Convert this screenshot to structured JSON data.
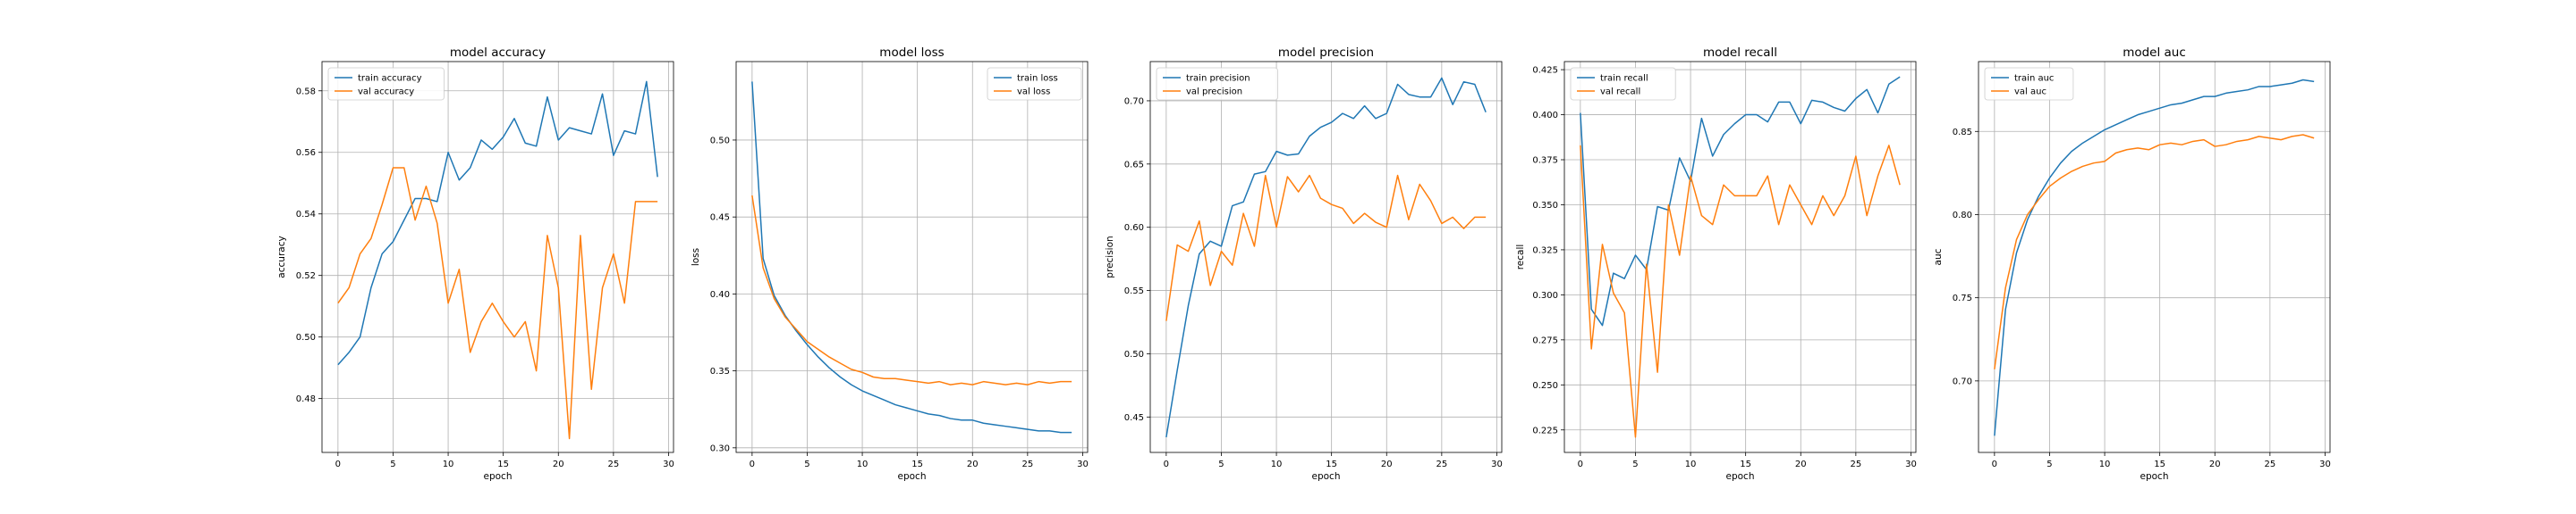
{
  "chart_data": [
    {
      "type": "line",
      "title": "model accuracy",
      "xlabel": "epoch",
      "ylabel": "accuracy",
      "xlim": [
        -1.45,
        30.45
      ],
      "ylim": [
        0.4625,
        0.5895
      ],
      "xticks": [
        0,
        5,
        10,
        15,
        20,
        25,
        30
      ],
      "yticks": [
        0.48,
        0.5,
        0.52,
        0.54,
        0.56,
        0.58
      ],
      "ytick_labels": [
        "0.48",
        "0.50",
        "0.52",
        "0.54",
        "0.56",
        "0.58"
      ],
      "grid": true,
      "legend": "top-left",
      "series": [
        {
          "name": "train accuracy",
          "color": "#1f77b4",
          "x": [
            0,
            1,
            2,
            3,
            4,
            5,
            6,
            7,
            8,
            9,
            10,
            11,
            12,
            13,
            14,
            15,
            16,
            17,
            18,
            19,
            20,
            21,
            22,
            23,
            24,
            25,
            26,
            27,
            28,
            29
          ],
          "values": [
            0.491,
            0.495,
            0.5,
            0.516,
            0.527,
            0.531,
            0.538,
            0.545,
            0.545,
            0.544,
            0.56,
            0.551,
            0.555,
            0.564,
            0.561,
            0.565,
            0.571,
            0.563,
            0.562,
            0.578,
            0.564,
            0.568,
            0.567,
            0.566,
            0.579,
            0.559,
            0.567,
            0.566,
            0.583,
            0.552
          ]
        },
        {
          "name": "val accuracy",
          "color": "#ff7f0e",
          "x": [
            0,
            1,
            2,
            3,
            4,
            5,
            6,
            7,
            8,
            9,
            10,
            11,
            12,
            13,
            14,
            15,
            16,
            17,
            18,
            19,
            20,
            21,
            22,
            23,
            24,
            25,
            26,
            27,
            28,
            29
          ],
          "values": [
            0.511,
            0.516,
            0.527,
            0.532,
            0.543,
            0.555,
            0.555,
            0.538,
            0.549,
            0.537,
            0.511,
            0.522,
            0.495,
            0.505,
            0.511,
            0.505,
            0.5,
            0.505,
            0.489,
            0.533,
            0.516,
            0.467,
            0.533,
            0.483,
            0.516,
            0.527,
            0.511,
            0.544,
            0.544,
            0.544
          ]
        }
      ]
    },
    {
      "type": "line",
      "title": "model loss",
      "xlabel": "epoch",
      "ylabel": "loss",
      "xlim": [
        -1.45,
        30.45
      ],
      "ylim": [
        0.297,
        0.551
      ],
      "xticks": [
        0,
        5,
        10,
        15,
        20,
        25,
        30
      ],
      "yticks": [
        0.3,
        0.35,
        0.4,
        0.45,
        0.5
      ],
      "ytick_labels": [
        "0.30",
        "0.35",
        "0.40",
        "0.45",
        "0.50"
      ],
      "grid": true,
      "legend": "top-right",
      "series": [
        {
          "name": "train loss",
          "color": "#1f77b4",
          "x": [
            0,
            1,
            2,
            3,
            4,
            5,
            6,
            7,
            8,
            9,
            10,
            11,
            12,
            13,
            14,
            15,
            16,
            17,
            18,
            19,
            20,
            21,
            22,
            23,
            24,
            25,
            26,
            27,
            28,
            29
          ],
          "values": [
            0.538,
            0.423,
            0.399,
            0.386,
            0.376,
            0.367,
            0.359,
            0.352,
            0.346,
            0.341,
            0.337,
            0.334,
            0.331,
            0.328,
            0.326,
            0.324,
            0.322,
            0.321,
            0.319,
            0.318,
            0.318,
            0.316,
            0.315,
            0.314,
            0.313,
            0.312,
            0.311,
            0.311,
            0.31,
            0.31
          ]
        },
        {
          "name": "val loss",
          "color": "#ff7f0e",
          "x": [
            0,
            1,
            2,
            3,
            4,
            5,
            6,
            7,
            8,
            9,
            10,
            11,
            12,
            13,
            14,
            15,
            16,
            17,
            18,
            19,
            20,
            21,
            22,
            23,
            24,
            25,
            26,
            27,
            28,
            29
          ],
          "values": [
            0.464,
            0.417,
            0.397,
            0.385,
            0.377,
            0.369,
            0.364,
            0.359,
            0.355,
            0.351,
            0.349,
            0.346,
            0.345,
            0.345,
            0.344,
            0.343,
            0.342,
            0.343,
            0.341,
            0.342,
            0.341,
            0.343,
            0.342,
            0.341,
            0.342,
            0.341,
            0.343,
            0.342,
            0.343,
            0.343
          ]
        }
      ]
    },
    {
      "type": "line",
      "title": "model precision",
      "xlabel": "epoch",
      "ylabel": "precision",
      "xlim": [
        -1.45,
        30.45
      ],
      "ylim": [
        0.422,
        0.731
      ],
      "xticks": [
        0,
        5,
        10,
        15,
        20,
        25,
        30
      ],
      "yticks": [
        0.45,
        0.5,
        0.55,
        0.6,
        0.65,
        0.7
      ],
      "ytick_labels": [
        "0.45",
        "0.50",
        "0.55",
        "0.60",
        "0.65",
        "0.70"
      ],
      "grid": true,
      "legend": "top-left",
      "series": [
        {
          "name": "train precision",
          "color": "#1f77b4",
          "x": [
            0,
            1,
            2,
            3,
            4,
            5,
            6,
            7,
            8,
            9,
            10,
            11,
            12,
            13,
            14,
            15,
            16,
            17,
            18,
            19,
            20,
            21,
            22,
            23,
            24,
            25,
            26,
            27,
            28,
            29
          ],
          "values": [
            0.434,
            0.487,
            0.538,
            0.579,
            0.589,
            0.585,
            0.617,
            0.62,
            0.642,
            0.644,
            0.66,
            0.657,
            0.658,
            0.672,
            0.679,
            0.683,
            0.69,
            0.686,
            0.696,
            0.686,
            0.69,
            0.713,
            0.705,
            0.703,
            0.703,
            0.718,
            0.697,
            0.715,
            0.713,
            0.691
          ]
        },
        {
          "name": "val precision",
          "color": "#ff7f0e",
          "x": [
            0,
            1,
            2,
            3,
            4,
            5,
            6,
            7,
            8,
            9,
            10,
            11,
            12,
            13,
            14,
            15,
            16,
            17,
            18,
            19,
            20,
            21,
            22,
            23,
            24,
            25,
            26,
            27,
            28,
            29
          ],
          "values": [
            0.526,
            0.586,
            0.581,
            0.605,
            0.554,
            0.581,
            0.57,
            0.611,
            0.585,
            0.641,
            0.6,
            0.64,
            0.628,
            0.641,
            0.623,
            0.618,
            0.615,
            0.603,
            0.611,
            0.604,
            0.6,
            0.641,
            0.606,
            0.634,
            0.621,
            0.603,
            0.608,
            0.599,
            0.608,
            0.608
          ]
        }
      ]
    },
    {
      "type": "line",
      "title": "model recall",
      "xlabel": "epoch",
      "ylabel": "recall",
      "xlim": [
        -1.45,
        30.45
      ],
      "ylim": [
        0.2125,
        0.4295
      ],
      "xticks": [
        0,
        5,
        10,
        15,
        20,
        25,
        30
      ],
      "yticks": [
        0.225,
        0.25,
        0.275,
        0.3,
        0.325,
        0.35,
        0.375,
        0.4,
        0.425
      ],
      "ytick_labels": [
        "0.225",
        "0.250",
        "0.275",
        "0.300",
        "0.325",
        "0.350",
        "0.375",
        "0.400",
        "0.425"
      ],
      "grid": true,
      "legend": "top-left",
      "series": [
        {
          "name": "train recall",
          "color": "#1f77b4",
          "x": [
            0,
            1,
            2,
            3,
            4,
            5,
            6,
            7,
            8,
            9,
            10,
            11,
            12,
            13,
            14,
            15,
            16,
            17,
            18,
            19,
            20,
            21,
            22,
            23,
            24,
            25,
            26,
            27,
            28,
            29
          ],
          "values": [
            0.401,
            0.292,
            0.283,
            0.312,
            0.309,
            0.322,
            0.314,
            0.349,
            0.347,
            0.376,
            0.363,
            0.398,
            0.377,
            0.389,
            0.395,
            0.4,
            0.4,
            0.396,
            0.407,
            0.407,
            0.395,
            0.408,
            0.407,
            0.404,
            0.402,
            0.409,
            0.414,
            0.401,
            0.417,
            0.421
          ]
        },
        {
          "name": "val recall",
          "color": "#ff7f0e",
          "x": [
            0,
            1,
            2,
            3,
            4,
            5,
            6,
            7,
            8,
            9,
            10,
            11,
            12,
            13,
            14,
            15,
            16,
            17,
            18,
            19,
            20,
            21,
            22,
            23,
            24,
            25,
            26,
            27,
            28,
            29
          ],
          "values": [
            0.383,
            0.27,
            0.328,
            0.301,
            0.29,
            0.221,
            0.317,
            0.257,
            0.35,
            0.322,
            0.366,
            0.344,
            0.339,
            0.361,
            0.355,
            0.355,
            0.355,
            0.366,
            0.339,
            0.361,
            0.35,
            0.339,
            0.355,
            0.344,
            0.355,
            0.377,
            0.344,
            0.366,
            0.383,
            0.361
          ]
        }
      ]
    },
    {
      "type": "line",
      "title": "model auc",
      "xlabel": "epoch",
      "ylabel": "auc",
      "xlim": [
        -1.45,
        30.45
      ],
      "ylim": [
        0.657,
        0.892
      ],
      "xticks": [
        0,
        5,
        10,
        15,
        20,
        25,
        30
      ],
      "yticks": [
        0.7,
        0.75,
        0.8,
        0.85
      ],
      "ytick_labels": [
        "0.70",
        "0.75",
        "0.80",
        "0.85"
      ],
      "grid": true,
      "legend": "top-left",
      "series": [
        {
          "name": "train auc",
          "color": "#1f77b4",
          "x": [
            0,
            1,
            2,
            3,
            4,
            5,
            6,
            7,
            8,
            9,
            10,
            11,
            12,
            13,
            14,
            15,
            16,
            17,
            18,
            19,
            20,
            21,
            22,
            23,
            24,
            25,
            26,
            27,
            28,
            29
          ],
          "values": [
            0.667,
            0.743,
            0.777,
            0.797,
            0.811,
            0.822,
            0.831,
            0.838,
            0.843,
            0.847,
            0.851,
            0.854,
            0.857,
            0.86,
            0.862,
            0.864,
            0.866,
            0.867,
            0.869,
            0.871,
            0.871,
            0.873,
            0.874,
            0.875,
            0.877,
            0.877,
            0.878,
            0.879,
            0.881,
            0.88
          ]
        },
        {
          "name": "val auc",
          "color": "#ff7f0e",
          "x": [
            0,
            1,
            2,
            3,
            4,
            5,
            6,
            7,
            8,
            9,
            10,
            11,
            12,
            13,
            14,
            15,
            16,
            17,
            18,
            19,
            20,
            21,
            22,
            23,
            24,
            25,
            26,
            27,
            28,
            29
          ],
          "values": [
            0.707,
            0.756,
            0.785,
            0.8,
            0.809,
            0.817,
            0.822,
            0.826,
            0.829,
            0.831,
            0.832,
            0.837,
            0.839,
            0.84,
            0.839,
            0.842,
            0.843,
            0.842,
            0.844,
            0.845,
            0.841,
            0.842,
            0.844,
            0.845,
            0.847,
            0.846,
            0.845,
            0.847,
            0.848,
            0.846
          ]
        }
      ]
    }
  ]
}
